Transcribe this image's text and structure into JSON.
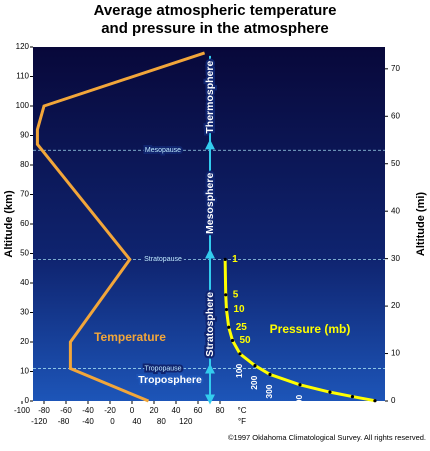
{
  "chart_data": {
    "type": "line",
    "title_lines": [
      "Average atmospheric temperature",
      "and pressure in the atmosphere"
    ],
    "ylabel": "Altitude (km)",
    "ylim": [
      0,
      120
    ],
    "yticks": [
      0,
      10,
      20,
      30,
      40,
      50,
      60,
      70,
      80,
      90,
      100,
      110,
      120
    ],
    "y2label": "Altitude (mi)",
    "y2lim": [
      0,
      74.6
    ],
    "y2ticks": [
      0,
      10,
      20,
      30,
      40,
      50,
      60,
      70
    ],
    "xlim": [
      -110,
      230
    ],
    "xticks": [
      -100,
      -80,
      -60,
      -40,
      -20,
      0,
      20,
      40,
      60,
      80
    ],
    "xunit": "°C",
    "fticks": [
      -120,
      -80,
      -40,
      0,
      40,
      80,
      120
    ],
    "funit": "°F",
    "series": [
      {
        "name": "Temperature",
        "color": "#f2a63a",
        "x": [
          15,
          -56,
          -56,
          -2,
          -86,
          -86,
          -80,
          66
        ],
        "values": [
          0,
          11,
          20,
          48,
          87,
          92,
          100,
          118
        ]
      },
      {
        "name": "Pressure (mb)",
        "color": "#ffff00",
        "xlim": [
          -1280,
          1067
        ],
        "x": [
          1,
          5,
          10,
          25,
          50,
          100,
          200,
          300,
          500,
          700,
          850,
          1000
        ],
        "values": [
          48,
          36,
          31,
          25,
          20.5,
          16,
          12,
          9,
          5.5,
          3,
          1.5,
          0.1
        ]
      }
    ],
    "layers": [
      {
        "name": "Troposphere",
        "altitude": 7
      },
      {
        "name": "Stratosphere",
        "altitude": 26
      },
      {
        "name": "Mesosphere",
        "altitude": 67
      },
      {
        "name": "Thermosphere",
        "altitude": 103
      }
    ],
    "pauses": [
      {
        "name": "Tropopause",
        "altitude": 11
      },
      {
        "name": "Stratopause",
        "altitude": 48
      },
      {
        "name": "Mesopause",
        "altitude": 85
      }
    ],
    "footer": "©1997 Oklahoma Climatological Survey.  All rights reserved."
  }
}
